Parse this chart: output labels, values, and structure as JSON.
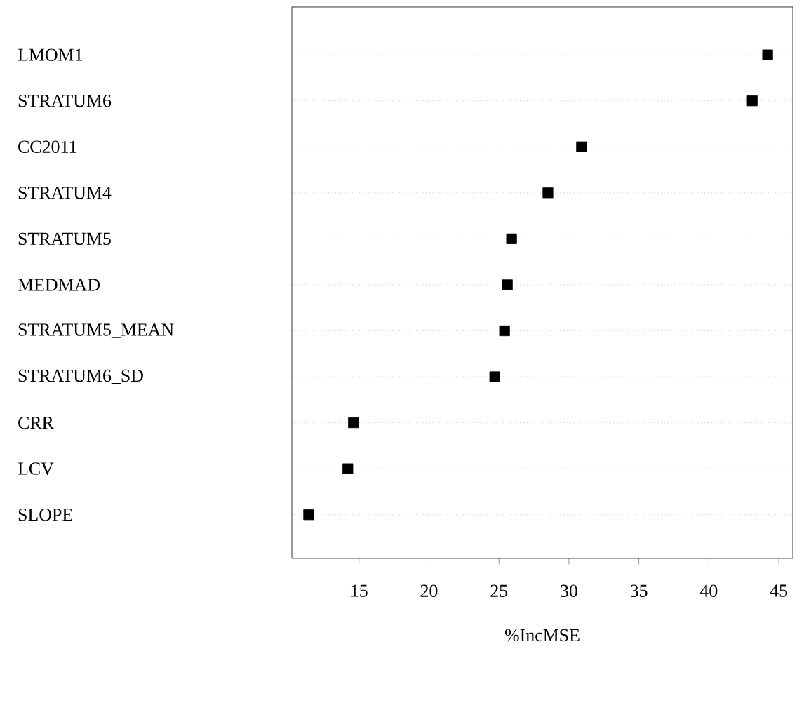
{
  "chart_data": {
    "type": "scatter",
    "orientation": "horizontal",
    "xlabel": "%IncMSE",
    "categories": [
      "LMOM1",
      "STRATUM6",
      "CC2011",
      "STRATUM4",
      "STRATUM5",
      "MEDMAD",
      "STRATUM5_MEAN",
      "STRATUM6_SD",
      "CRR",
      "LCV",
      "SLOPE"
    ],
    "values": [
      44.2,
      43.1,
      30.9,
      28.5,
      25.9,
      25.6,
      25.4,
      24.7,
      14.6,
      14.2,
      11.4
    ],
    "color": "#000000",
    "marker": "square",
    "grid": "y",
    "line_style": "dotted",
    "xlim": [
      10.2,
      46.0
    ],
    "xticks": [
      15,
      20,
      25,
      30,
      35,
      40,
      45
    ]
  }
}
